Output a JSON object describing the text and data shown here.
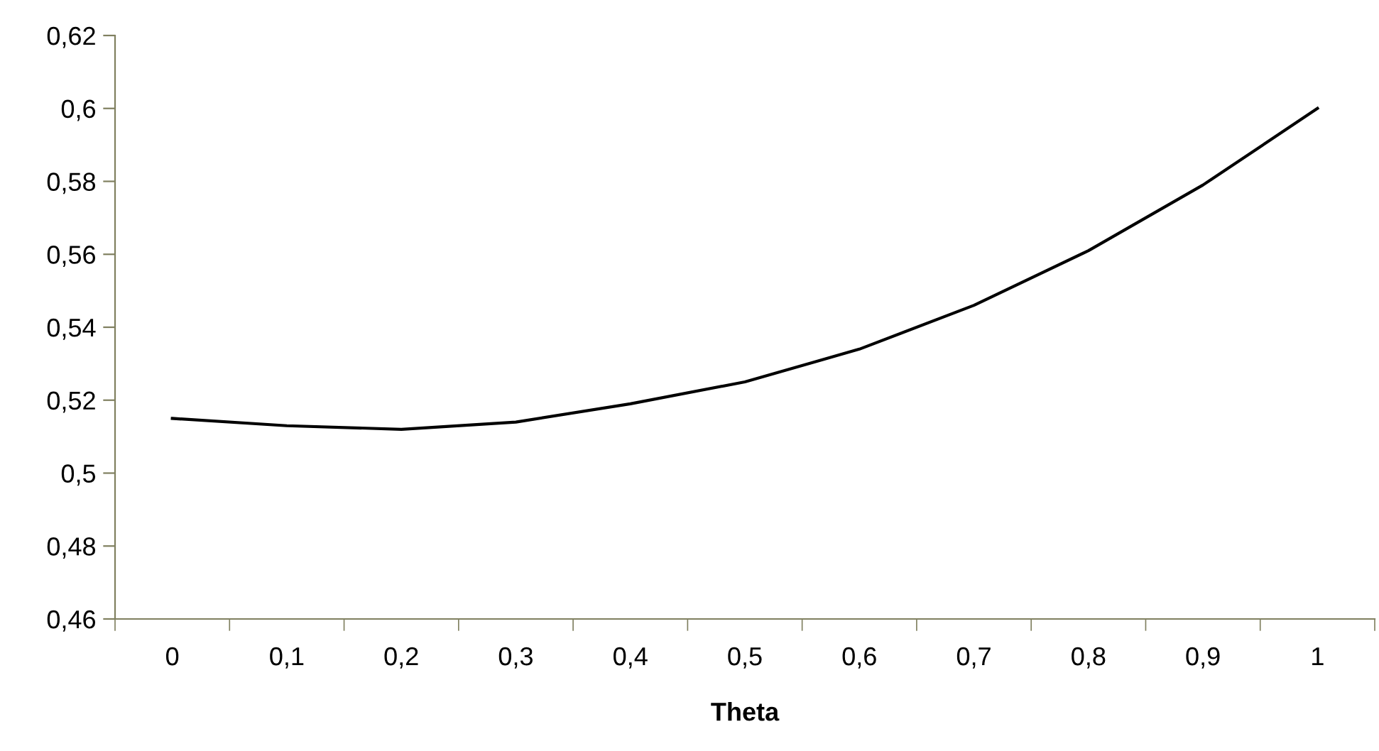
{
  "chart_data": {
    "type": "line",
    "xlabel": "Theta",
    "categories": [
      "0",
      "0,1",
      "0,2",
      "0,3",
      "0,4",
      "0,5",
      "0,6",
      "0,7",
      "0,8",
      "0,9",
      "1"
    ],
    "series": [
      {
        "color": "#000000",
        "values": [
          0.515,
          0.513,
          0.512,
          0.514,
          0.519,
          0.525,
          0.534,
          0.546,
          0.561,
          0.579,
          0.6
        ]
      }
    ],
    "ylim": [
      0.46,
      0.62
    ],
    "yticks": [
      {
        "value": 0.46,
        "label": "0,46"
      },
      {
        "value": 0.48,
        "label": "0,48"
      },
      {
        "value": 0.5,
        "label": "0,5"
      },
      {
        "value": 0.52,
        "label": "0,52"
      },
      {
        "value": 0.54,
        "label": "0,54"
      },
      {
        "value": 0.56,
        "label": "0,56"
      },
      {
        "value": 0.58,
        "label": "0,58"
      },
      {
        "value": 0.6,
        "label": "0,6"
      },
      {
        "value": 0.62,
        "label": "0,62"
      }
    ],
    "grid": false,
    "legend": false,
    "marker": "none",
    "line_style": "solid"
  }
}
